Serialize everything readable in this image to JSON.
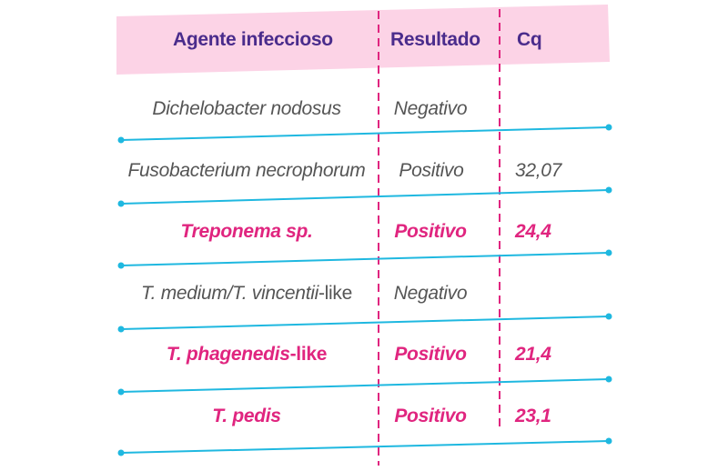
{
  "colors": {
    "header_bg": "#fcd3e6",
    "header_text": "#4a2c8c",
    "divider_pink": "#e0257f",
    "row_line_blue": "#1fb8e0",
    "text_gray": "#555555",
    "text_highlight": "#e0257f"
  },
  "table": {
    "headers": {
      "agent": "Agente infeccioso",
      "result": "Resultado",
      "cq": "Cq"
    },
    "rows": [
      {
        "agent": "Dichelobacter nodosus",
        "result": "Negativo",
        "cq": "",
        "highlight": false
      },
      {
        "agent": "Fusobacterium necrophorum",
        "result": "Positivo",
        "cq": "32,07",
        "highlight": false
      },
      {
        "agent": "Treponema sp.",
        "result": "Positivo",
        "cq": "24,4",
        "highlight": true
      },
      {
        "agent_italic": "T. medium/T. vincentii",
        "agent_plain": "-like",
        "result": "Negativo",
        "cq": "",
        "highlight": false
      },
      {
        "agent_italic": "T. phagenedis",
        "agent_plain": "-like",
        "result": "Positivo",
        "cq": "21,4",
        "highlight": true
      },
      {
        "agent": "T. pedis",
        "result": "Positivo",
        "cq": "23,1",
        "highlight": true
      }
    ]
  }
}
